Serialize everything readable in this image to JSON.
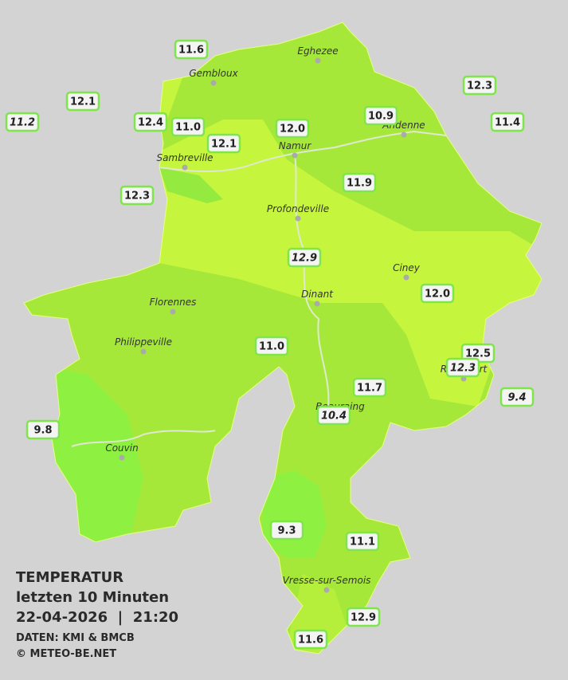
{
  "title": {
    "line1": "TEMPERATUR",
    "line2": "letzten 10 Minuten",
    "line3": "22-04-2026  |  21:20",
    "source": "DATEN: KMI & BMCB",
    "copyright": "© METEO-BE.NET"
  },
  "towns": [
    "Eghezee",
    "Gembloux",
    "Andenne",
    "Namur",
    "Sambreville",
    "Profondeville",
    "Ciney",
    "Dinant",
    "Florennes",
    "Philippeville",
    "Rochefort",
    "Beauraing",
    "Couvin",
    "Vresse-sur-Semois"
  ],
  "stations": [
    {
      "value": "11.6",
      "italic": false
    },
    {
      "value": "12.1",
      "italic": false
    },
    {
      "value": "11.2",
      "italic": true
    },
    {
      "value": "12.4",
      "italic": false
    },
    {
      "value": "11.0",
      "italic": false
    },
    {
      "value": "12.1",
      "italic": false
    },
    {
      "value": "12.0",
      "italic": false
    },
    {
      "value": "10.9",
      "italic": false
    },
    {
      "value": "12.3",
      "italic": false
    },
    {
      "value": "11.4",
      "italic": false
    },
    {
      "value": "12.3",
      "italic": false
    },
    {
      "value": "11.9",
      "italic": false
    },
    {
      "value": "12.9",
      "italic": true
    },
    {
      "value": "12.0",
      "italic": false
    },
    {
      "value": "11.0",
      "italic": false
    },
    {
      "value": "12.5",
      "italic": false
    },
    {
      "value": "12.3",
      "italic": true
    },
    {
      "value": "9.4",
      "italic": true
    },
    {
      "value": "11.7",
      "italic": false
    },
    {
      "value": "10.4",
      "italic": true
    },
    {
      "value": "9.8",
      "italic": false
    },
    {
      "value": "9.3",
      "italic": false
    },
    {
      "value": "11.1",
      "italic": false
    },
    {
      "value": "12.9",
      "italic": false
    },
    {
      "value": "11.6",
      "italic": false
    }
  ]
}
